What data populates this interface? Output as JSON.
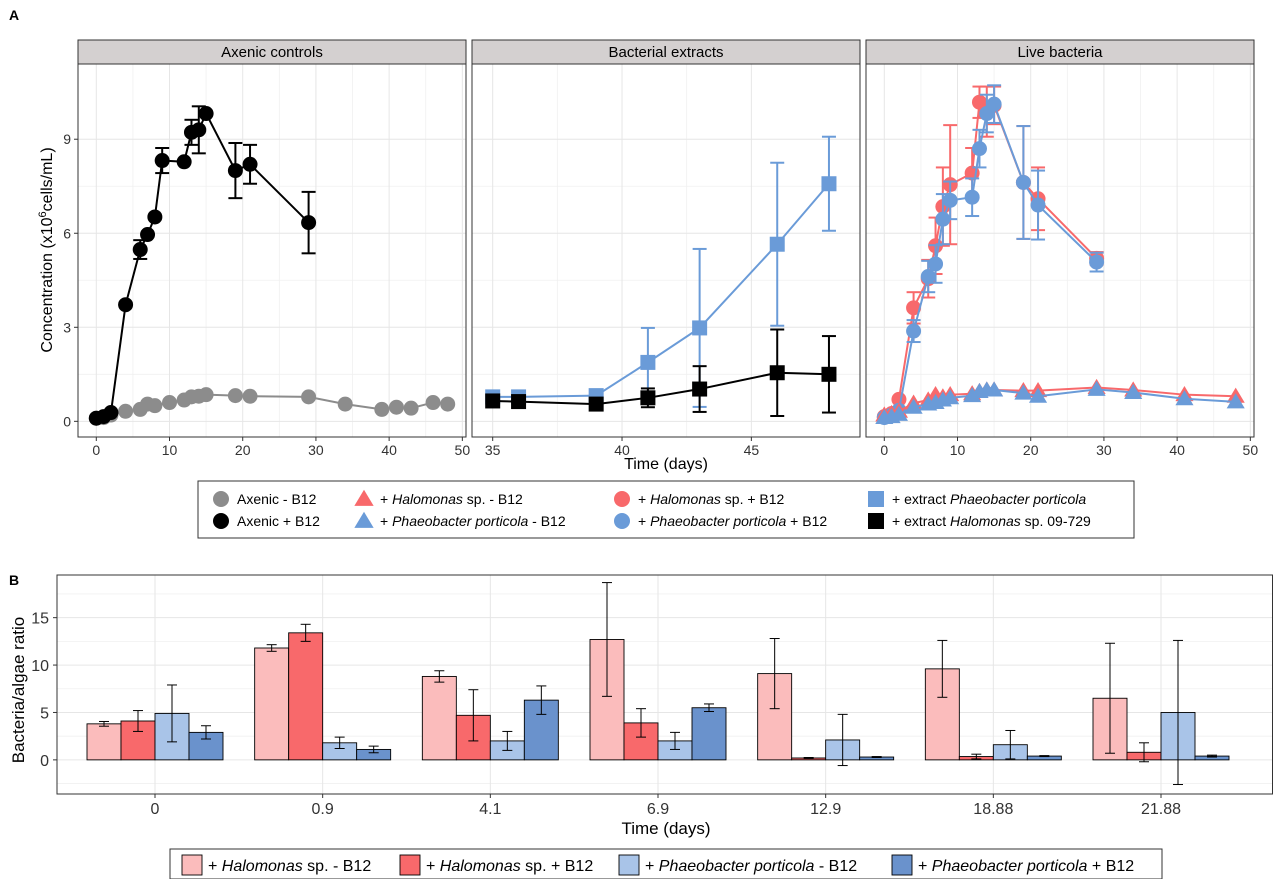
{
  "panel_a_label": "A",
  "panel_b_label": "B",
  "chart_data": [
    {
      "type": "line",
      "panel": "A",
      "ylabel_main": "Concentration  (x10",
      "ylabel_sup": "6",
      "ylabel_tail": "cells/mL)",
      "xlabel": "Time (days)",
      "ylim": [
        -0.5,
        11.4
      ],
      "yticks": [
        0,
        3,
        6,
        9
      ],
      "grid": true,
      "facets": [
        {
          "title": "Axenic controls",
          "xlim": [
            -2.5,
            50.5
          ],
          "xticks": [
            0,
            10,
            20,
            30,
            40,
            50
          ],
          "series": [
            {
              "key": "axenic_minus",
              "x": [
                0,
                1,
                2,
                4,
                6,
                7,
                8,
                10,
                12,
                13,
                14,
                15,
                19,
                21,
                29,
                34,
                39,
                41,
                43,
                46,
                48
              ],
              "y": [
                0.1,
                0.12,
                0.2,
                0.32,
                0.38,
                0.55,
                0.5,
                0.6,
                0.68,
                0.78,
                0.8,
                0.85,
                0.82,
                0.8,
                0.78,
                0.55,
                0.38,
                0.45,
                0.42,
                0.6,
                0.55
              ]
            },
            {
              "key": "axenic_plus",
              "x": [
                0,
                1,
                2,
                4,
                6,
                7,
                8,
                9,
                12,
                13,
                14,
                15,
                19,
                21,
                29
              ],
              "y": [
                0.1,
                0.15,
                0.28,
                3.72,
                5.48,
                5.96,
                6.52,
                8.32,
                8.28,
                9.22,
                9.3,
                9.82,
                8.0,
                8.2,
                6.34
              ],
              "err": [
                0,
                0,
                0,
                0,
                0.3,
                0,
                0,
                0.4,
                0,
                0.4,
                0.75,
                0,
                0.88,
                0.62,
                0.98
              ]
            }
          ]
        },
        {
          "title": "Bacterial extracts",
          "xlim": [
            34.2,
            49.2
          ],
          "xticks": [
            35,
            40,
            45
          ],
          "series": [
            {
              "key": "extract_phaeo",
              "x": [
                35,
                36,
                39,
                41,
                43,
                46,
                48
              ],
              "y": [
                0.78,
                0.78,
                0.82,
                1.88,
                2.98,
                5.65,
                7.58
              ],
              "err": [
                0,
                0,
                0,
                1.1,
                2.52,
                2.6,
                1.5
              ]
            },
            {
              "key": "extract_halo",
              "x": [
                35,
                36,
                39,
                41,
                43,
                46,
                48
              ],
              "y": [
                0.65,
                0.63,
                0.55,
                0.75,
                1.03,
                1.55,
                1.5
              ],
              "err": [
                0,
                0,
                0,
                0.3,
                0.73,
                1.38,
                1.22
              ]
            }
          ]
        },
        {
          "title": "Live bacteria",
          "xlim": [
            -2.5,
            50.5
          ],
          "xticks": [
            0,
            10,
            20,
            30,
            40,
            50
          ],
          "series": [
            {
              "key": "halo_plus",
              "x": [
                0,
                1,
                2,
                4,
                6,
                7,
                8,
                9,
                12,
                13,
                14,
                15,
                19,
                21,
                29
              ],
              "y": [
                0.15,
                0.25,
                0.7,
                3.62,
                4.55,
                5.6,
                6.85,
                7.55,
                7.92,
                10.18,
                9.88,
                10.08,
                7.62,
                7.1,
                5.2
              ],
              "err": [
                0,
                0,
                0,
                0.5,
                0.6,
                0.9,
                1.25,
                1.9,
                0.8,
                0.5,
                0.8,
                0.6,
                1.8,
                1.0,
                0.2
              ]
            },
            {
              "key": "phaeo_plus",
              "x": [
                0,
                1,
                2,
                4,
                6,
                7,
                8,
                9,
                12,
                13,
                14,
                15,
                19,
                21,
                29
              ],
              "y": [
                0.12,
                0.2,
                0.35,
                2.88,
                4.62,
                5.02,
                6.45,
                7.05,
                7.15,
                8.7,
                9.82,
                10.12,
                7.62,
                6.9,
                5.08
              ],
              "err": [
                0,
                0,
                0,
                0.35,
                0.5,
                0.6,
                0.8,
                0.6,
                0.6,
                0.6,
                0.6,
                0.6,
                1.8,
                1.1,
                0.3
              ]
            },
            {
              "key": "halo_minus",
              "x": [
                0,
                1,
                2,
                4,
                6,
                7,
                8,
                9,
                12,
                13,
                14,
                15,
                19,
                21,
                29,
                34,
                41,
                48
              ],
              "y": [
                0.2,
                0.25,
                0.32,
                0.58,
                0.68,
                0.85,
                0.78,
                0.85,
                0.88,
                0.95,
                1.0,
                1.0,
                0.98,
                0.98,
                1.08,
                1.0,
                0.85,
                0.8
              ]
            },
            {
              "key": "phaeo_minus",
              "x": [
                0,
                1,
                2,
                4,
                6,
                7,
                8,
                9,
                12,
                13,
                14,
                15,
                19,
                21,
                29,
                34,
                41,
                48
              ],
              "y": [
                0.12,
                0.15,
                0.22,
                0.45,
                0.55,
                0.6,
                0.68,
                0.75,
                0.82,
                0.95,
                1.0,
                1.0,
                0.9,
                0.8,
                1.02,
                0.92,
                0.72,
                0.62
              ]
            }
          ]
        }
      ],
      "legend": {
        "items": [
          {
            "key": "axenic_minus",
            "shape": "circle",
            "color": "#8c8c8c",
            "parts": [
              {
                "t": "Axenic - B12",
                "i": false
              }
            ]
          },
          {
            "key": "axenic_plus",
            "shape": "circle",
            "color": "#000000",
            "parts": [
              {
                "t": "Axenic + B12",
                "i": false
              }
            ]
          },
          {
            "key": "halo_minus",
            "shape": "triangle",
            "color": "#f8696b",
            "parts": [
              {
                "t": "+ ",
                "i": false
              },
              {
                "t": "Halomonas",
                "i": true
              },
              {
                "t": " sp. - B12",
                "i": false
              }
            ]
          },
          {
            "key": "phaeo_minus",
            "shape": "triangle",
            "color": "#6a9bd8",
            "parts": [
              {
                "t": "+ ",
                "i": false
              },
              {
                "t": "Phaeobacter porticola",
                "i": true
              },
              {
                "t": " - B12",
                "i": false
              }
            ]
          },
          {
            "key": "halo_plus",
            "shape": "circle",
            "color": "#f8696b",
            "parts": [
              {
                "t": "+ ",
                "i": false
              },
              {
                "t": "Halomonas",
                "i": true
              },
              {
                "t": " sp. + B12",
                "i": false
              }
            ]
          },
          {
            "key": "phaeo_plus",
            "shape": "circle",
            "color": "#6a9bd8",
            "parts": [
              {
                "t": "+ ",
                "i": false
              },
              {
                "t": "Phaeobacter porticola",
                "i": true
              },
              {
                "t": " + B12",
                "i": false
              }
            ]
          },
          {
            "key": "extract_phaeo",
            "shape": "square",
            "color": "#6a9bd8",
            "parts": [
              {
                "t": "+ extract ",
                "i": false
              },
              {
                "t": "Phaeobacter porticola",
                "i": true
              }
            ]
          },
          {
            "key": "extract_halo",
            "shape": "square",
            "color": "#000000",
            "parts": [
              {
                "t": "+ extract ",
                "i": false
              },
              {
                "t": "Halomonas",
                "i": true
              },
              {
                "t": " sp. 09-729",
                "i": false
              }
            ]
          }
        ]
      }
    },
    {
      "type": "bar",
      "panel": "B",
      "ylabel": "Bacteria/algae ratio",
      "xlabel": "Time (days)",
      "ylim": [
        -3.6,
        19.5
      ],
      "yticks": [
        0,
        5,
        10,
        15
      ],
      "grid": true,
      "categories": [
        "0",
        "0.9",
        "4.1",
        "6.9",
        "12.9",
        "18.88",
        "21.88"
      ],
      "series": [
        {
          "key": "halo_minus",
          "color": "#fbbcbc",
          "values": [
            3.8,
            11.8,
            8.8,
            12.7,
            9.1,
            9.6,
            6.5
          ],
          "err": [
            0.25,
            0.35,
            0.6,
            6.0,
            3.7,
            3.0,
            5.8
          ]
        },
        {
          "key": "halo_plus",
          "color": "#f8696b",
          "values": [
            4.1,
            13.4,
            4.7,
            3.9,
            0.2,
            0.35,
            0.8
          ],
          "err": [
            1.1,
            0.9,
            2.7,
            1.5,
            0.05,
            0.25,
            1.0
          ]
        },
        {
          "key": "phaeo_minus",
          "color": "#a9c4e8",
          "values": [
            4.9,
            1.8,
            2.0,
            2.0,
            2.1,
            1.6,
            5.0
          ],
          "err": [
            3.0,
            0.6,
            1.0,
            0.9,
            2.7,
            1.5,
            7.6
          ]
        },
        {
          "key": "phaeo_plus",
          "color": "#6a92cc",
          "values": [
            2.9,
            1.1,
            6.3,
            5.5,
            0.3,
            0.4,
            0.4
          ],
          "err": [
            0.7,
            0.35,
            1.5,
            0.4,
            0.05,
            0.05,
            0.1
          ]
        }
      ],
      "legend": {
        "items": [
          {
            "key": "halo_minus",
            "color": "#fbbcbc",
            "parts": [
              {
                "t": "+ ",
                "i": false
              },
              {
                "t": "Halomonas",
                "i": true
              },
              {
                "t": " sp. - B12",
                "i": false
              }
            ]
          },
          {
            "key": "halo_plus",
            "color": "#f8696b",
            "parts": [
              {
                "t": "+ ",
                "i": false
              },
              {
                "t": "Halomonas",
                "i": true
              },
              {
                "t": " sp. + B12",
                "i": false
              }
            ]
          },
          {
            "key": "phaeo_minus",
            "color": "#a9c4e8",
            "parts": [
              {
                "t": "+ ",
                "i": false
              },
              {
                "t": "Phaeobacter porticola",
                "i": true
              },
              {
                "t": " - B12",
                "i": false
              }
            ]
          },
          {
            "key": "phaeo_plus",
            "color": "#6a92cc",
            "parts": [
              {
                "t": "+ ",
                "i": false
              },
              {
                "t": "Phaeobacter porticola",
                "i": true
              },
              {
                "t": " + B12",
                "i": false
              }
            ]
          }
        ]
      }
    }
  ]
}
